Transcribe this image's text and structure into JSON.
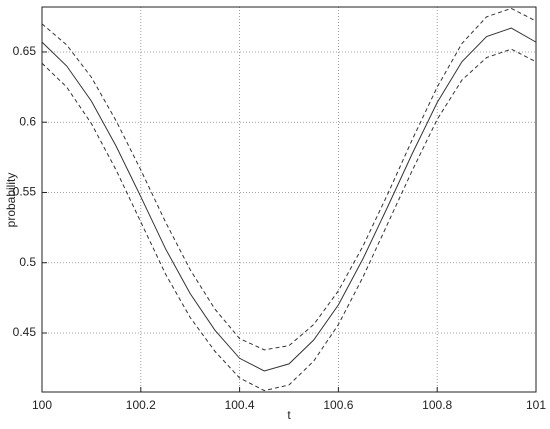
{
  "chart_data": {
    "type": "line",
    "x_label": "t",
    "y_label": "probability",
    "x": [
      100,
      100.05,
      100.1,
      100.15,
      100.2,
      100.25,
      100.3,
      100.35,
      100.4,
      100.45,
      100.5,
      100.55,
      100.6,
      100.65,
      100.7,
      100.75,
      100.8,
      100.85,
      100.9,
      100.95,
      101
    ],
    "series": [
      {
        "color": "#333333",
        "dashed": false,
        "values": [
          0.657,
          0.64,
          0.615,
          0.583,
          0.547,
          0.51,
          0.478,
          0.452,
          0.432,
          0.423,
          0.428,
          0.445,
          0.47,
          0.503,
          0.54,
          0.578,
          0.614,
          0.643,
          0.661,
          0.667,
          0.657
        ]
      },
      {
        "color": "#333333",
        "dashed": true,
        "values": [
          0.67,
          0.655,
          0.632,
          0.601,
          0.566,
          0.529,
          0.495,
          0.467,
          0.446,
          0.438,
          0.441,
          0.456,
          0.48,
          0.512,
          0.549,
          0.588,
          0.625,
          0.656,
          0.675,
          0.681,
          0.672
        ]
      },
      {
        "color": "#333333",
        "dashed": true,
        "values": [
          0.642,
          0.625,
          0.599,
          0.566,
          0.529,
          0.492,
          0.461,
          0.437,
          0.418,
          0.409,
          0.413,
          0.43,
          0.456,
          0.49,
          0.528,
          0.566,
          0.602,
          0.63,
          0.646,
          0.652,
          0.643
        ]
      }
    ],
    "xlim": [
      100,
      101
    ],
    "xticks": [
      100,
      100.2,
      100.4,
      100.6,
      100.8,
      101
    ],
    "ylim": [
      0.408,
      0.682
    ],
    "yticks": [
      0.45,
      0.5,
      0.55,
      0.6,
      0.65
    ],
    "grid": true
  }
}
